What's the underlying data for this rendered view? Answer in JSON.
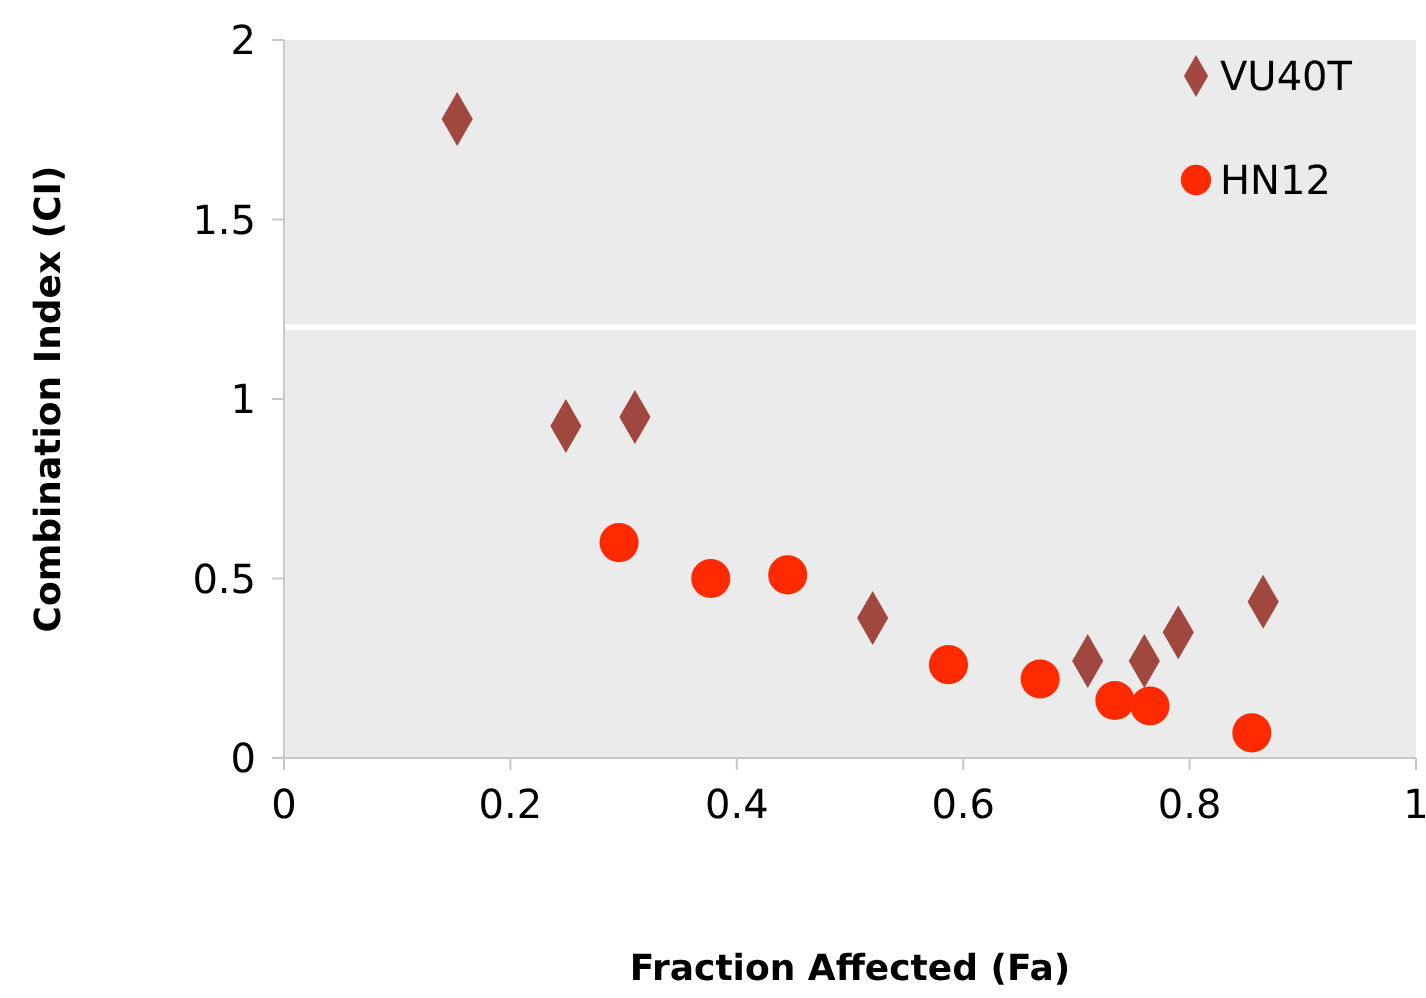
{
  "chart_data": {
    "type": "scatter",
    "xlabel": "Fraction Affected (Fa)",
    "ylabel": "Combination Index (CI)",
    "xlim": [
      0,
      1
    ],
    "ylim": [
      0,
      2
    ],
    "xticks": [
      0,
      0.2,
      0.4,
      0.6,
      0.8,
      1
    ],
    "yticks": [
      0,
      0.5,
      1,
      1.5,
      2
    ],
    "grid": false,
    "legend": "top right",
    "ref_lines": [
      {
        "axis": "y",
        "value": 1.2,
        "label": null,
        "color": "#ffffff"
      }
    ],
    "series": [
      {
        "name": "VU40T",
        "color": "#a0473f",
        "marker": "diamond",
        "x": [
          0.153,
          0.249,
          0.31,
          0.52,
          0.71,
          0.76,
          0.79,
          0.865
        ],
        "values": [
          1.78,
          0.925,
          0.95,
          0.39,
          0.27,
          0.27,
          0.35,
          0.435
        ]
      },
      {
        "name": "HN12",
        "color": "#ff2a00",
        "marker": "circle",
        "x": [
          0.296,
          0.377,
          0.445,
          0.587,
          0.668,
          0.734,
          0.765,
          0.855
        ],
        "values": [
          0.6,
          0.5,
          0.51,
          0.26,
          0.22,
          0.16,
          0.145,
          0.07
        ]
      }
    ]
  }
}
